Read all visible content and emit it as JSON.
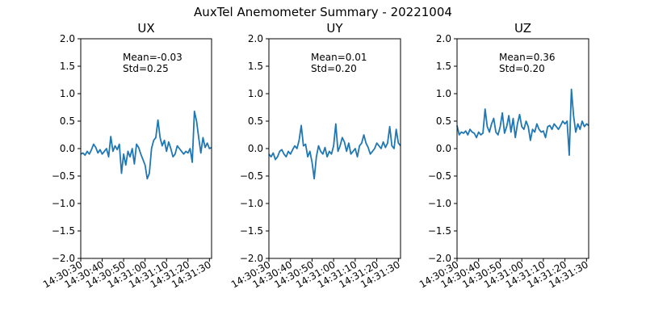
{
  "figure": {
    "title": "AuxTel Anemometer Summary - 20221004",
    "line_color": "#1f77b4"
  },
  "chart_data": [
    {
      "type": "line",
      "title": "UX",
      "ylim": [
        -2.0,
        2.0
      ],
      "yticks": [
        "2.0",
        "1.5",
        "1.0",
        "0.5",
        "0.0",
        "−0.5",
        "−1.0",
        "−1.5",
        "−2.0"
      ],
      "ytick_values": [
        2.0,
        1.5,
        1.0,
        0.5,
        0.0,
        -0.5,
        -1.0,
        -1.5,
        -2.0
      ],
      "xlim": [
        "14:30:30",
        "14:31:31"
      ],
      "xticks": [
        "14:30:30",
        "14:30:40",
        "14:30:50",
        "14:31:00",
        "14:31:10",
        "14:31:20",
        "14:31:30"
      ],
      "annotation": [
        "Mean=-0.03",
        "Std=0.25"
      ],
      "series": [
        {
          "x": [
            "14:30:30",
            "14:30:31",
            "14:30:32",
            "14:30:33",
            "14:30:34",
            "14:30:35",
            "14:30:36",
            "14:30:37",
            "14:30:38",
            "14:30:39",
            "14:30:40",
            "14:30:41",
            "14:30:42",
            "14:30:43",
            "14:30:44",
            "14:30:45",
            "14:30:46",
            "14:30:47",
            "14:30:48",
            "14:30:49",
            "14:30:50",
            "14:30:51",
            "14:30:52",
            "14:30:53",
            "14:30:54",
            "14:30:55",
            "14:30:56",
            "14:30:57",
            "14:30:58",
            "14:30:59",
            "14:31:00",
            "14:31:01",
            "14:31:02",
            "14:31:03",
            "14:31:04",
            "14:31:05",
            "14:31:06",
            "14:31:07",
            "14:31:08",
            "14:31:09",
            "14:31:10",
            "14:31:11",
            "14:31:12",
            "14:31:13",
            "14:31:14",
            "14:31:15",
            "14:31:16",
            "14:31:17",
            "14:31:18",
            "14:31:19",
            "14:31:20",
            "14:31:21",
            "14:31:22",
            "14:31:23",
            "14:31:24",
            "14:31:25",
            "14:31:26",
            "14:31:27",
            "14:31:28",
            "14:31:29",
            "14:31:30",
            "14:31:31"
          ],
          "y": [
            -0.1,
            -0.08,
            -0.12,
            -0.05,
            -0.1,
            -0.02,
            0.08,
            0.02,
            -0.08,
            -0.02,
            -0.1,
            -0.05,
            0.0,
            -0.15,
            0.22,
            -0.05,
            0.05,
            -0.02,
            0.08,
            -0.45,
            -0.1,
            -0.3,
            -0.05,
            -0.15,
            0.0,
            -0.28,
            0.08,
            0.02,
            -0.1,
            -0.2,
            -0.3,
            -0.55,
            -0.45,
            0.0,
            0.15,
            0.2,
            0.52,
            0.2,
            0.05,
            0.15,
            -0.05,
            0.12,
            0.0,
            -0.15,
            -0.1,
            0.05,
            0.0,
            -0.05,
            -0.1,
            -0.05,
            -0.08,
            0.0,
            -0.25,
            0.68,
            0.5,
            0.2,
            -0.08,
            0.2,
            0.02,
            0.1,
            0.0,
            0.02
          ]
        }
      ]
    },
    {
      "type": "line",
      "title": "UY",
      "ylim": [
        -2.0,
        2.0
      ],
      "yticks": [
        "2.0",
        "1.5",
        "1.0",
        "0.5",
        "0.0",
        "−0.5",
        "−1.0",
        "−1.5",
        "−2.0"
      ],
      "ytick_values": [
        2.0,
        1.5,
        1.0,
        0.5,
        0.0,
        -0.5,
        -1.0,
        -1.5,
        -2.0
      ],
      "xlim": [
        "14:30:30",
        "14:31:31"
      ],
      "xticks": [
        "14:30:30",
        "14:30:40",
        "14:30:50",
        "14:31:00",
        "14:31:10",
        "14:31:20",
        "14:31:30"
      ],
      "annotation": [
        "Mean=0.01",
        "Std=0.20"
      ],
      "series": [
        {
          "x": [
            "14:30:30",
            "14:30:31",
            "14:30:32",
            "14:30:33",
            "14:30:34",
            "14:30:35",
            "14:30:36",
            "14:30:37",
            "14:30:38",
            "14:30:39",
            "14:30:40",
            "14:30:41",
            "14:30:42",
            "14:30:43",
            "14:30:44",
            "14:30:45",
            "14:30:46",
            "14:30:47",
            "14:30:48",
            "14:30:49",
            "14:30:50",
            "14:30:51",
            "14:30:52",
            "14:30:53",
            "14:30:54",
            "14:30:55",
            "14:30:56",
            "14:30:57",
            "14:30:58",
            "14:30:59",
            "14:31:00",
            "14:31:01",
            "14:31:02",
            "14:31:03",
            "14:31:04",
            "14:31:05",
            "14:31:06",
            "14:31:07",
            "14:31:08",
            "14:31:09",
            "14:31:10",
            "14:31:11",
            "14:31:12",
            "14:31:13",
            "14:31:14",
            "14:31:15",
            "14:31:16",
            "14:31:17",
            "14:31:18",
            "14:31:19",
            "14:31:20",
            "14:31:21",
            "14:31:22",
            "14:31:23",
            "14:31:24",
            "14:31:25",
            "14:31:26",
            "14:31:27",
            "14:31:28",
            "14:31:29",
            "14:31:30",
            "14:31:31"
          ],
          "y": [
            -0.1,
            -0.15,
            -0.08,
            -0.2,
            -0.15,
            -0.05,
            -0.02,
            -0.1,
            -0.15,
            -0.05,
            -0.1,
            -0.02,
            0.05,
            0.0,
            0.15,
            0.42,
            0.05,
            0.08,
            -0.15,
            -0.05,
            -0.25,
            -0.55,
            -0.15,
            0.05,
            -0.05,
            -0.1,
            0.02,
            -0.15,
            -0.05,
            -0.1,
            0.05,
            0.45,
            -0.05,
            0.05,
            0.2,
            0.12,
            -0.05,
            0.1,
            -0.1,
            -0.05,
            0.0,
            -0.15,
            0.05,
            0.1,
            0.25,
            0.1,
            0.02,
            -0.1,
            -0.05,
            0.0,
            0.1,
            0.05,
            0.0,
            0.12,
            0.02,
            0.1,
            0.4,
            0.05,
            0.0,
            0.35,
            0.1,
            0.05
          ]
        }
      ]
    },
    {
      "type": "line",
      "title": "UZ",
      "ylim": [
        -2.0,
        2.0
      ],
      "yticks": [
        "2.0",
        "1.5",
        "1.0",
        "0.5",
        "0.0",
        "−0.5",
        "−1.0",
        "−1.5",
        "−2.0"
      ],
      "ytick_values": [
        2.0,
        1.5,
        1.0,
        0.5,
        0.0,
        -0.5,
        -1.0,
        -1.5,
        -2.0
      ],
      "xlim": [
        "14:30:30",
        "14:31:31"
      ],
      "xticks": [
        "14:30:30",
        "14:30:40",
        "14:30:50",
        "14:31:00",
        "14:31:10",
        "14:31:20",
        "14:31:30"
      ],
      "annotation": [
        "Mean=0.36",
        "Std=0.20"
      ],
      "series": [
        {
          "x": [
            "14:30:30",
            "14:30:31",
            "14:30:32",
            "14:30:33",
            "14:30:34",
            "14:30:35",
            "14:30:36",
            "14:30:37",
            "14:30:38",
            "14:30:39",
            "14:30:40",
            "14:30:41",
            "14:30:42",
            "14:30:43",
            "14:30:44",
            "14:30:45",
            "14:30:46",
            "14:30:47",
            "14:30:48",
            "14:30:49",
            "14:30:50",
            "14:30:51",
            "14:30:52",
            "14:30:53",
            "14:30:54",
            "14:30:55",
            "14:30:56",
            "14:30:57",
            "14:30:58",
            "14:30:59",
            "14:31:00",
            "14:31:01",
            "14:31:02",
            "14:31:03",
            "14:31:04",
            "14:31:05",
            "14:31:06",
            "14:31:07",
            "14:31:08",
            "14:31:09",
            "14:31:10",
            "14:31:11",
            "14:31:12",
            "14:31:13",
            "14:31:14",
            "14:31:15",
            "14:31:16",
            "14:31:17",
            "14:31:18",
            "14:31:19",
            "14:31:20",
            "14:31:21",
            "14:31:22",
            "14:31:23",
            "14:31:24",
            "14:31:25",
            "14:31:26",
            "14:31:27",
            "14:31:28",
            "14:31:29",
            "14:31:30",
            "14:31:31"
          ],
          "y": [
            0.42,
            0.25,
            0.3,
            0.28,
            0.32,
            0.25,
            0.35,
            0.3,
            0.28,
            0.2,
            0.3,
            0.25,
            0.28,
            0.72,
            0.4,
            0.3,
            0.45,
            0.55,
            0.3,
            0.25,
            0.4,
            0.65,
            0.28,
            0.4,
            0.6,
            0.3,
            0.55,
            0.2,
            0.45,
            0.62,
            0.4,
            0.35,
            0.5,
            0.4,
            0.15,
            0.35,
            0.3,
            0.45,
            0.35,
            0.3,
            0.32,
            0.2,
            0.4,
            0.42,
            0.35,
            0.45,
            0.4,
            0.35,
            0.42,
            0.5,
            0.45,
            0.5,
            -0.12,
            1.08,
            0.6,
            0.3,
            0.45,
            0.35,
            0.5,
            0.4,
            0.45,
            0.42
          ]
        }
      ]
    }
  ]
}
